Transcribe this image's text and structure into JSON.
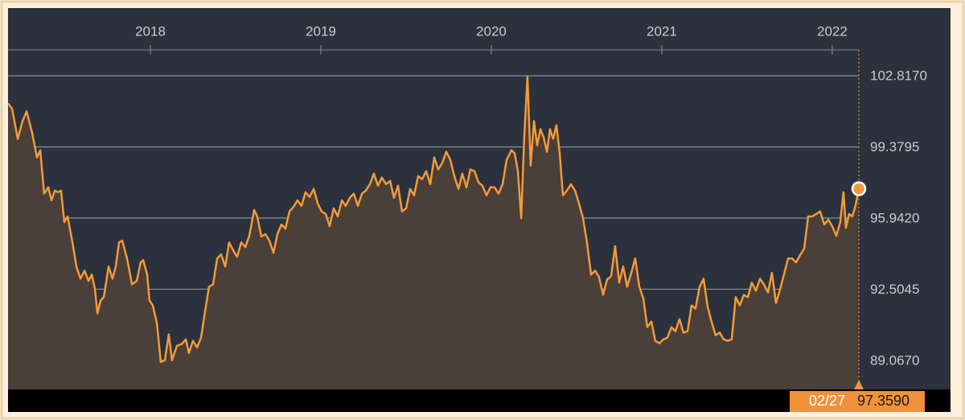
{
  "chart_data": {
    "type": "area",
    "color": "#f39a3a",
    "area_color": "#4a3f39",
    "grid": true,
    "x": [
      2017.165,
      2017.189,
      2017.222,
      2017.25,
      2017.274,
      2017.307,
      2017.335,
      2017.354,
      2017.377,
      2017.401,
      2017.42,
      2017.439,
      2017.458,
      2017.476,
      2017.495,
      2017.514,
      2017.543,
      2017.566,
      2017.59,
      2017.613,
      2017.637,
      2017.656,
      2017.675,
      2017.689,
      2017.708,
      2017.727,
      2017.755,
      2017.778,
      2017.797,
      2017.816,
      2017.835,
      2017.863,
      2017.892,
      2017.92,
      2017.943,
      2017.958,
      2017.981,
      2017.995,
      2018.014,
      2018.038,
      2018.061,
      2018.085,
      2018.108,
      2018.127,
      2018.156,
      2018.184,
      2018.208,
      2018.226,
      2018.25,
      2018.274,
      2018.297,
      2018.321,
      2018.344,
      2018.368,
      2018.392,
      2018.415,
      2018.439,
      2018.462,
      2018.486,
      2018.509,
      2018.533,
      2018.557,
      2018.58,
      2018.609,
      2018.627,
      2018.651,
      2018.675,
      2018.698,
      2018.722,
      2018.745,
      2018.769,
      2018.792,
      2018.816,
      2018.84,
      2018.863,
      2018.887,
      2018.91,
      2018.934,
      2018.958,
      2018.981,
      2019.005,
      2019.028,
      2019.052,
      2019.075,
      2019.099,
      2019.123,
      2019.146,
      2019.17,
      2019.193,
      2019.217,
      2019.241,
      2019.264,
      2019.288,
      2019.311,
      2019.335,
      2019.358,
      2019.382,
      2019.406,
      2019.429,
      2019.453,
      2019.476,
      2019.5,
      2019.524,
      2019.547,
      2019.571,
      2019.594,
      2019.618,
      2019.642,
      2019.665,
      2019.689,
      2019.712,
      2019.736,
      2019.759,
      2019.783,
      2019.807,
      2019.83,
      2019.854,
      2019.877,
      2019.901,
      2019.925,
      2019.948,
      2019.972,
      2019.995,
      2020.019,
      2020.042,
      2020.066,
      2020.09,
      2020.118,
      2020.137,
      2020.156,
      2020.175,
      2020.193,
      2020.212,
      2020.231,
      2020.25,
      2020.269,
      2020.288,
      2020.307,
      2020.326,
      2020.344,
      2020.363,
      2020.382,
      2020.401,
      2020.42,
      2020.443,
      2020.467,
      2020.491,
      2020.514,
      2020.538,
      2020.561,
      2020.585,
      2020.609,
      2020.632,
      2020.656,
      2020.679,
      2020.703,
      2020.726,
      2020.75,
      2020.774,
      2020.797,
      2020.821,
      2020.844,
      2020.868,
      2020.892,
      2020.915,
      2020.939,
      2020.962,
      2020.986,
      2021.009,
      2021.033,
      2021.057,
      2021.08,
      2021.104,
      2021.127,
      2021.151,
      2021.175,
      2021.198,
      2021.222,
      2021.245,
      2021.269,
      2021.292,
      2021.316,
      2021.34,
      2021.363,
      2021.387,
      2021.41,
      2021.434,
      2021.458,
      2021.481,
      2021.505,
      2021.528,
      2021.552,
      2021.576,
      2021.599,
      2021.623,
      2021.646,
      2021.67,
      2021.694,
      2021.717,
      2021.741,
      2021.764,
      2021.788,
      2021.811,
      2021.835,
      2021.859,
      2021.882,
      2021.906,
      2021.929,
      2021.953,
      2021.977,
      2022.0,
      2022.024,
      2022.047,
      2022.066,
      2022.08,
      2022.099,
      2022.118,
      2022.137,
      2022.156
    ],
    "values": [
      101.49,
      101.22,
      99.77,
      100.63,
      101.1,
      100.04,
      98.87,
      99.22,
      97.12,
      97.43,
      96.8,
      97.27,
      97.19,
      97.27,
      95.75,
      96.02,
      94.77,
      93.6,
      93.01,
      93.4,
      92.9,
      93.21,
      92.51,
      91.33,
      91.96,
      92.12,
      93.6,
      93.01,
      93.6,
      94.77,
      94.85,
      93.99,
      92.74,
      92.9,
      93.8,
      93.91,
      93.21,
      91.96,
      91.72,
      90.86,
      88.99,
      89.07,
      90.32,
      89.07,
      89.77,
      89.85,
      90.08,
      89.42,
      90.01,
      89.69,
      90.16,
      91.45,
      92.62,
      92.74,
      93.99,
      94.19,
      93.6,
      94.77,
      94.38,
      94.07,
      94.77,
      94.54,
      95.08,
      96.33,
      96.02,
      95.05,
      95.16,
      94.85,
      94.26,
      95.16,
      95.63,
      95.43,
      96.26,
      96.49,
      96.8,
      96.53,
      97.19,
      96.96,
      97.35,
      96.65,
      96.26,
      96.14,
      95.55,
      96.41,
      96.02,
      96.8,
      96.53,
      96.92,
      97.12,
      96.53,
      97.12,
      97.27,
      97.58,
      98.09,
      97.51,
      97.9,
      97.58,
      97.74,
      96.92,
      97.51,
      96.26,
      96.41,
      97.35,
      97.04,
      97.97,
      97.82,
      98.21,
      97.58,
      98.87,
      98.29,
      98.6,
      99.15,
      98.76,
      97.97,
      97.35,
      98.09,
      97.43,
      98.29,
      98.21,
      97.66,
      97.51,
      97.04,
      97.43,
      97.43,
      97.12,
      97.58,
      98.76,
      99.22,
      99.07,
      98.21,
      95.94,
      99.85,
      102.78,
      98.48,
      100.63,
      99.46,
      100.24,
      99.85,
      99.15,
      100.24,
      99.77,
      100.43,
      99.07,
      97.04,
      97.27,
      97.58,
      97.27,
      96.65,
      95.94,
      94.77,
      93.21,
      93.4,
      93.09,
      92.23,
      92.97,
      93.13,
      94.58,
      92.82,
      93.6,
      92.62,
      93.29,
      93.99,
      92.62,
      92.04,
      90.67,
      90.94,
      90.01,
      89.89,
      90.08,
      90.16,
      90.67,
      90.47,
      91.06,
      90.4,
      90.47,
      91.72,
      91.57,
      92.62,
      93.01,
      91.65,
      90.94,
      90.28,
      90.4,
      90.08,
      90.01,
      90.08,
      92.12,
      91.72,
      92.23,
      92.12,
      92.82,
      92.43,
      93.01,
      92.74,
      92.35,
      93.29,
      91.84,
      92.51,
      93.21,
      93.99,
      93.99,
      93.8,
      94.15,
      94.46,
      96.02,
      96.02,
      96.14,
      96.26,
      95.63,
      95.86,
      95.55,
      95.08,
      95.75,
      97.19,
      95.47,
      96.14,
      96.02,
      96.57,
      97.359
    ],
    "xlim": [
      2017.165,
      2022.156
    ],
    "xticks": [
      2018,
      2019,
      2020,
      2021,
      2022
    ],
    "ylim": [
      87.66,
      104.07
    ],
    "yticks": [
      {
        "value": 89.067,
        "label": "89.0670"
      },
      {
        "value": 92.5045,
        "label": "92.5045"
      },
      {
        "value": 95.942,
        "label": "95.9420"
      },
      {
        "value": 99.3795,
        "label": "99.3795"
      },
      {
        "value": 102.817,
        "label": "102.8170"
      }
    ],
    "cursor": {
      "label": "02/27",
      "value": 97.359,
      "value_label": "97.3590"
    }
  }
}
